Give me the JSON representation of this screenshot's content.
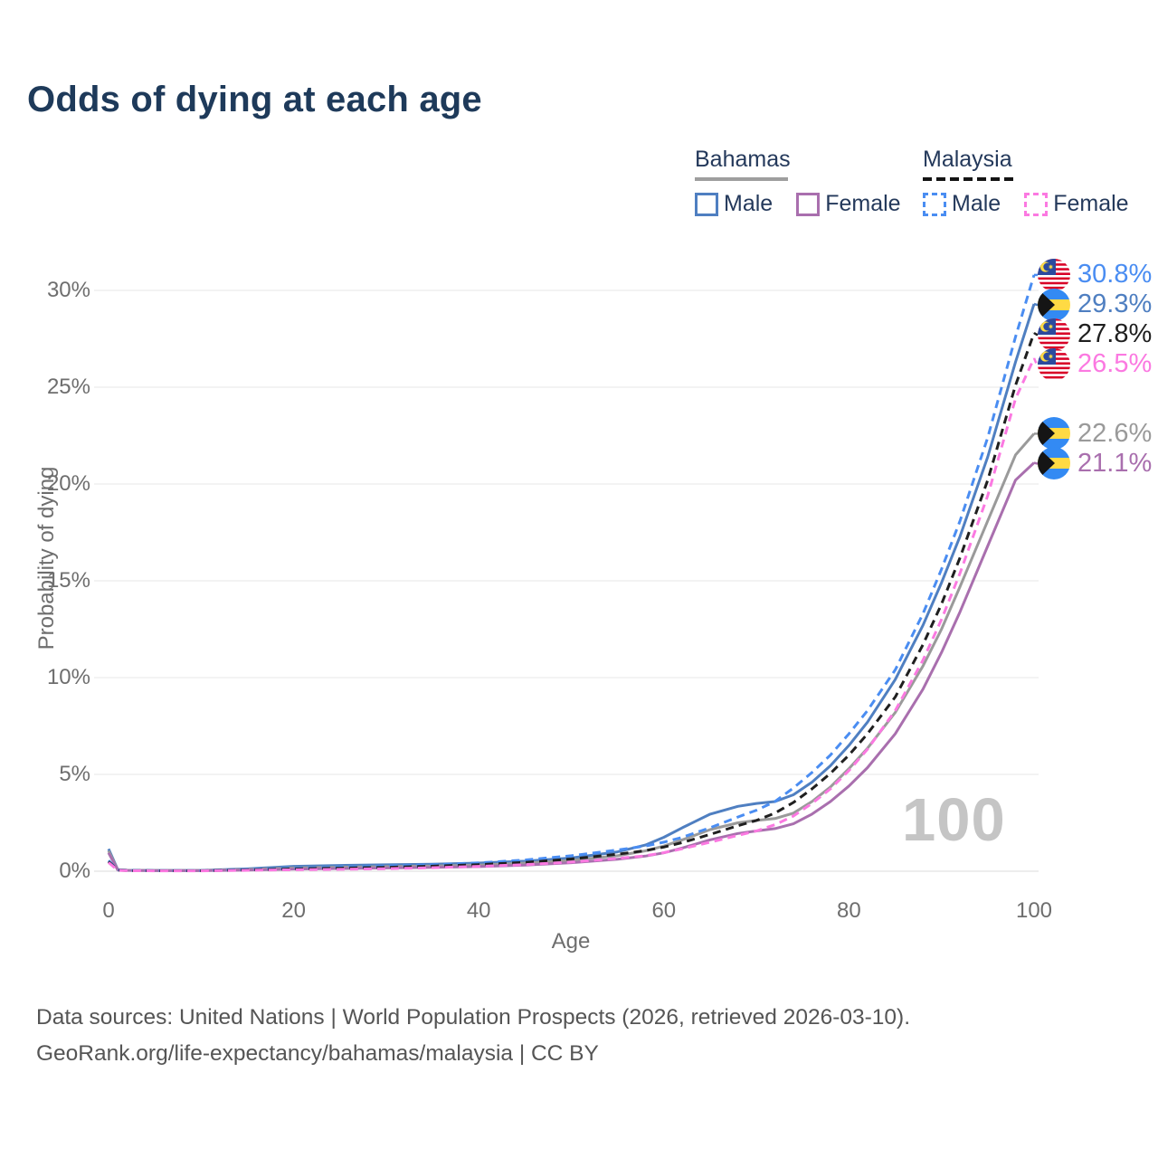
{
  "title": "Odds of dying at each age",
  "legend": {
    "groups": [
      {
        "name": "Bahamas",
        "underline": "solid",
        "underline_color": "#9e9e9e",
        "items": [
          {
            "label": "Male",
            "color": "#4f7fc1",
            "dash": "solid"
          },
          {
            "label": "Female",
            "color": "#a96fae",
            "dash": "solid"
          }
        ]
      },
      {
        "name": "Malaysia",
        "underline": "dashed",
        "underline_color": "#141414",
        "items": [
          {
            "label": "Male",
            "color": "#4a8df2",
            "dash": "dashed"
          },
          {
            "label": "Female",
            "color": "#fb79e1",
            "dash": "dashed"
          }
        ]
      }
    ]
  },
  "watermark": "100",
  "footer": {
    "line1": "Data sources: United Nations | World Population Prospects (2026, retrieved 2026-03-10).",
    "line2": "GeoRank.org/life-expectancy/bahamas/malaysia | CC BY"
  },
  "chart_data": {
    "type": "line",
    "title": "Odds of dying at each age",
    "xlabel": "Age",
    "ylabel": "Probability of dying",
    "x_ticks": [
      0,
      20,
      40,
      60,
      80,
      100
    ],
    "y_ticks": [
      "0%",
      "5%",
      "10%",
      "15%",
      "20%",
      "25%",
      "30%"
    ],
    "xlim": [
      0,
      100
    ],
    "ylim": [
      0,
      31
    ],
    "grid": "horizontal",
    "legend_position": "top-right",
    "ages": [
      0,
      1,
      2,
      5,
      10,
      15,
      20,
      25,
      30,
      35,
      40,
      45,
      50,
      55,
      58,
      60,
      62,
      65,
      68,
      70,
      72,
      74,
      76,
      78,
      80,
      82,
      85,
      88,
      90,
      92,
      95,
      98,
      100
    ],
    "series": [
      {
        "id": "malaysia-male",
        "country": "Malaysia",
        "flag": "my",
        "color": "#4a8df2",
        "dash": "dashed",
        "end_label": "30.8%",
        "end_value": 30.8,
        "values": [
          0.55,
          0.06,
          0.04,
          0.03,
          0.03,
          0.09,
          0.16,
          0.21,
          0.26,
          0.33,
          0.43,
          0.58,
          0.8,
          1.1,
          1.3,
          1.5,
          1.75,
          2.25,
          2.8,
          3.15,
          3.6,
          4.3,
          5.1,
          6.0,
          7.1,
          8.3,
          10.4,
          13.3,
          15.6,
          18.1,
          22.4,
          27.6,
          30.8
        ]
      },
      {
        "id": "bahamas-male",
        "country": "Bahamas",
        "flag": "bs",
        "color": "#4f7fc1",
        "dash": "solid",
        "end_label": "29.3%",
        "end_value": 29.3,
        "values": [
          1.15,
          0.08,
          0.05,
          0.04,
          0.04,
          0.12,
          0.25,
          0.3,
          0.33,
          0.36,
          0.42,
          0.52,
          0.68,
          1.0,
          1.35,
          1.75,
          2.25,
          2.95,
          3.35,
          3.5,
          3.6,
          3.95,
          4.6,
          5.45,
          6.5,
          7.7,
          9.9,
          12.7,
          14.9,
          17.3,
          21.4,
          26.3,
          29.3
        ]
      },
      {
        "id": "malaysia-all",
        "country": "Malaysia",
        "flag": "my",
        "color": "#1f1f1f",
        "dash": "dashed",
        "end_label": "27.8%",
        "end_value": 27.8,
        "values": [
          0.5,
          0.05,
          0.035,
          0.025,
          0.025,
          0.065,
          0.12,
          0.16,
          0.2,
          0.26,
          0.34,
          0.46,
          0.63,
          0.88,
          1.06,
          1.25,
          1.48,
          1.9,
          2.35,
          2.62,
          3.0,
          3.55,
          4.25,
          5.05,
          6.0,
          7.1,
          9.0,
          11.7,
          13.8,
          16.2,
          20.2,
          25.1,
          27.8
        ]
      },
      {
        "id": "malaysia-female",
        "country": "Malaysia",
        "flag": "my",
        "color": "#fb79e1",
        "dash": "dashed",
        "end_label": "26.5%",
        "end_value": 26.5,
        "values": [
          0.45,
          0.045,
          0.03,
          0.02,
          0.02,
          0.045,
          0.075,
          0.1,
          0.13,
          0.18,
          0.25,
          0.34,
          0.47,
          0.66,
          0.8,
          0.96,
          1.16,
          1.5,
          1.85,
          2.08,
          2.4,
          2.85,
          3.5,
          4.25,
          5.2,
          6.3,
          8.3,
          10.9,
          13.0,
          15.4,
          19.4,
          24.4,
          26.5
        ]
      },
      {
        "id": "bahamas-all",
        "country": "Bahamas",
        "flag": "bs",
        "color": "#9a9a9a",
        "dash": "solid",
        "end_label": "22.6%",
        "end_value": 22.6,
        "values": [
          1.05,
          0.07,
          0.045,
          0.035,
          0.035,
          0.09,
          0.17,
          0.21,
          0.24,
          0.27,
          0.32,
          0.42,
          0.56,
          0.8,
          1.05,
          1.3,
          1.62,
          2.15,
          2.5,
          2.62,
          2.72,
          3.0,
          3.6,
          4.35,
          5.3,
          6.35,
          8.2,
          10.6,
          12.5,
          14.7,
          18.1,
          21.5,
          22.6
        ]
      },
      {
        "id": "bahamas-female",
        "country": "Bahamas",
        "flag": "bs",
        "color": "#a96fae",
        "dash": "solid",
        "end_label": "21.1%",
        "end_value": 21.1,
        "values": [
          0.95,
          0.06,
          0.04,
          0.03,
          0.03,
          0.06,
          0.11,
          0.14,
          0.17,
          0.2,
          0.24,
          0.32,
          0.44,
          0.62,
          0.78,
          0.95,
          1.2,
          1.62,
          1.95,
          2.08,
          2.2,
          2.45,
          2.95,
          3.6,
          4.4,
          5.35,
          7.1,
          9.4,
          11.3,
          13.4,
          16.8,
          20.2,
          21.1
        ]
      }
    ]
  }
}
